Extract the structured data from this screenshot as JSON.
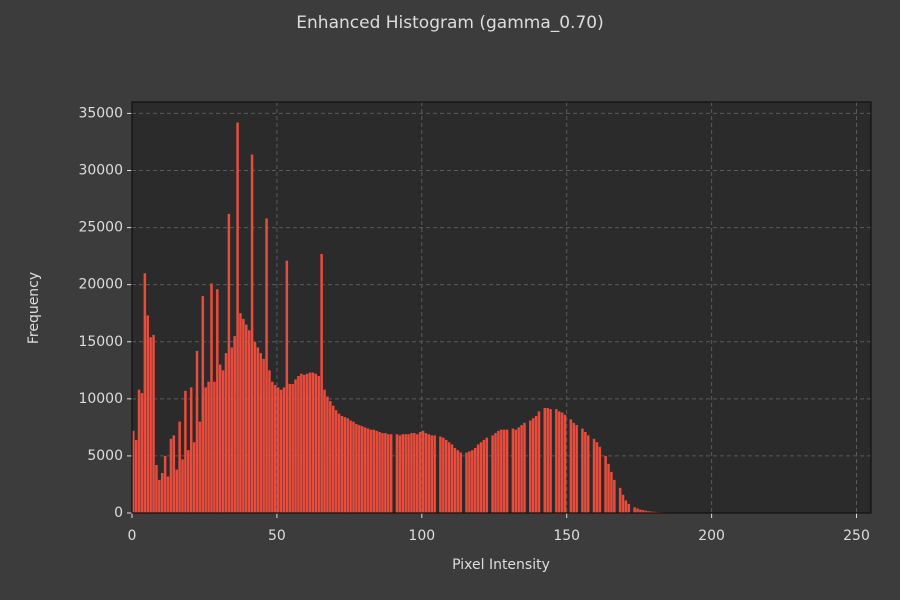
{
  "chart_data": {
    "type": "histogram",
    "title": "Enhanced Histogram (gamma_0.70)",
    "xlabel": "Pixel Intensity",
    "ylabel": "Frequency",
    "color": "#e84c3d",
    "grid": true,
    "xlim": [
      0,
      255
    ],
    "ylim": [
      0,
      36000
    ],
    "xticks": [
      0,
      50,
      100,
      150,
      200,
      250
    ],
    "yticks": [
      0,
      5000,
      10000,
      15000,
      20000,
      25000,
      30000,
      35000
    ],
    "bins": [
      0,
      1,
      2,
      3,
      4,
      5,
      6,
      7,
      8,
      9,
      10,
      11,
      12,
      13,
      14,
      15,
      16,
      17,
      18,
      19,
      20,
      21,
      22,
      23,
      24,
      25,
      26,
      27,
      28,
      29,
      30,
      31,
      32,
      33,
      34,
      35,
      36,
      37,
      38,
      39,
      40,
      41,
      42,
      43,
      44,
      45,
      46,
      47,
      48,
      49,
      50,
      51,
      52,
      53,
      54,
      55,
      56,
      57,
      58,
      59,
      60,
      61,
      62,
      63,
      64,
      65,
      66,
      67,
      68,
      69,
      70,
      71,
      72,
      73,
      74,
      75,
      76,
      77,
      78,
      79,
      80,
      81,
      82,
      83,
      84,
      85,
      86,
      87,
      88,
      89,
      90,
      91,
      92,
      93,
      94,
      95,
      96,
      97,
      98,
      99,
      100,
      101,
      102,
      103,
      104,
      105,
      106,
      107,
      108,
      109,
      110,
      111,
      112,
      113,
      114,
      115,
      116,
      117,
      118,
      119,
      120,
      121,
      122,
      123,
      124,
      125,
      126,
      127,
      128,
      129,
      130,
      131,
      132,
      133,
      134,
      135,
      136,
      137,
      138,
      139,
      140,
      141,
      142,
      143,
      144,
      145,
      146,
      147,
      148,
      149,
      150,
      151,
      152,
      153,
      154,
      155,
      156,
      157,
      158,
      159,
      160,
      161,
      162,
      163,
      164,
      165,
      166,
      167,
      168,
      169,
      170,
      171,
      172,
      173,
      174,
      175,
      176,
      177,
      178,
      179,
      180,
      181,
      182,
      183,
      184,
      185,
      186,
      187,
      188,
      189,
      190,
      191,
      192,
      193,
      194,
      195,
      196,
      197,
      198,
      199,
      200,
      201,
      202,
      203,
      204,
      205,
      206,
      207,
      208,
      209,
      210,
      211,
      212,
      213,
      214,
      215,
      216,
      217,
      218,
      219,
      220,
      221,
      222,
      223,
      224,
      225,
      226,
      227,
      228,
      229,
      230,
      231,
      232,
      233,
      234,
      235,
      236,
      237,
      238,
      239,
      240,
      241,
      242,
      243,
      244,
      245,
      246,
      247,
      248,
      249,
      250,
      251,
      252,
      253,
      254,
      255,
      256
    ],
    "counts": [
      7200,
      6400,
      10800,
      10500,
      21000,
      17300,
      15400,
      15600,
      4200,
      2900,
      3500,
      5000,
      3200,
      6500,
      6800,
      3800,
      8000,
      4700,
      10700,
      5500,
      11000,
      6200,
      14200,
      8000,
      19000,
      11000,
      11500,
      20100,
      11500,
      19600,
      13000,
      12500,
      14000,
      26200,
      14500,
      15500,
      34200,
      17500,
      17000,
      16500,
      16000,
      31400,
      15000,
      14500,
      14000,
      13500,
      25800,
      12500,
      11500,
      11200,
      11000,
      10800,
      11000,
      22100,
      11300,
      11300,
      11700,
      12000,
      12200,
      12100,
      12200,
      12300,
      12300,
      12200,
      12000,
      22700,
      10800,
      10200,
      9800,
      9400,
      9000,
      8700,
      8500,
      8400,
      8300,
      8100,
      8000,
      7800,
      7700,
      7600,
      7500,
      7400,
      7300,
      7300,
      7200,
      7100,
      7000,
      7000,
      6900,
      6900,
      0,
      6900,
      6800,
      6900,
      6900,
      6900,
      7000,
      7000,
      6900,
      7100,
      7200,
      7000,
      6900,
      6800,
      6800,
      0,
      6700,
      6600,
      6400,
      6200,
      6000,
      5700,
      5500,
      5300,
      0,
      5300,
      5400,
      5500,
      5700,
      6000,
      6200,
      6400,
      6600,
      0,
      6800,
      7000,
      7200,
      7300,
      7300,
      7300,
      0,
      7400,
      7300,
      7500,
      7700,
      7900,
      0,
      8100,
      8300,
      8500,
      8900,
      0,
      9200,
      9200,
      9100,
      0,
      9100,
      8900,
      8800,
      8600,
      0,
      8200,
      7900,
      7700,
      0,
      7400,
      7100,
      6800,
      0,
      6500,
      6200,
      5800,
      0,
      5000,
      4300,
      3600,
      2900,
      0,
      2200,
      1600,
      1100,
      800,
      0,
      500,
      400,
      300,
      250,
      200,
      150,
      120,
      100,
      80,
      60,
      50,
      40,
      30,
      25,
      20,
      15,
      12,
      10,
      8,
      6,
      5,
      4,
      3,
      2,
      2,
      1,
      1,
      0,
      0,
      0,
      0,
      0,
      0,
      0,
      0,
      0,
      0,
      0,
      0,
      0,
      0,
      0,
      0,
      0,
      0,
      0,
      0,
      0,
      0,
      0,
      0,
      0,
      0,
      0,
      0,
      0,
      0,
      0,
      0,
      0,
      0,
      0,
      0,
      0,
      0,
      0,
      0,
      0,
      0,
      0,
      0,
      0,
      0,
      0,
      0,
      0,
      0,
      0,
      0,
      0,
      0,
      0,
      0
    ]
  }
}
